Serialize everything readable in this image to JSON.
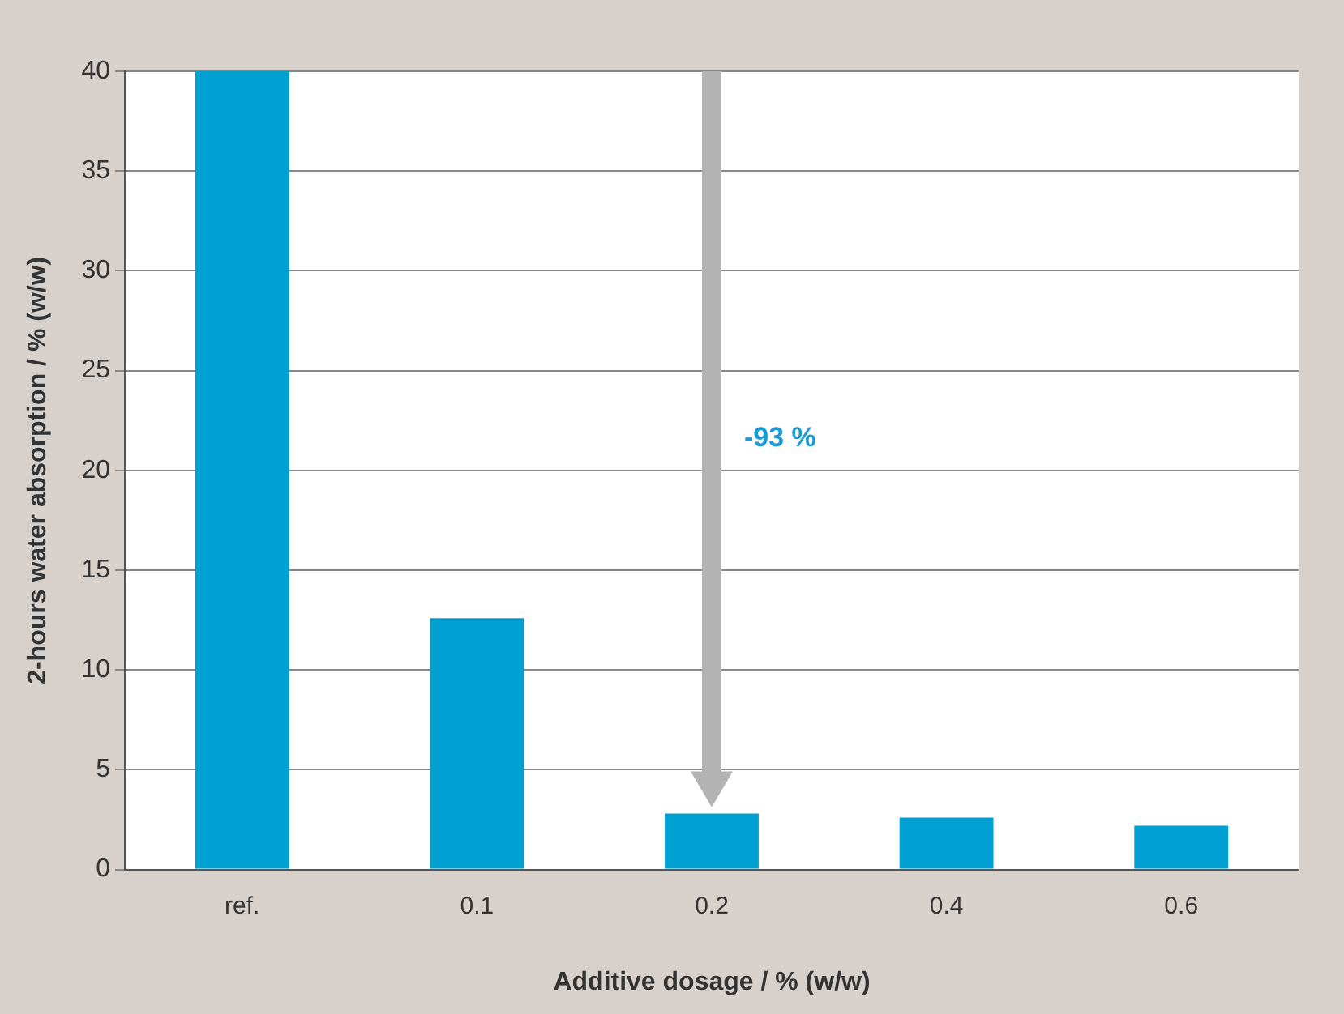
{
  "chart_data": {
    "type": "bar",
    "xlabel": "Additive dosage / % (w/w)",
    "ylabel": "2-hours water absorption / % (w/w)",
    "categories": [
      "ref.",
      "0.1",
      "0.2",
      "0.4",
      "0.6"
    ],
    "series": [
      {
        "color": "#00a0d2",
        "values": [
          40,
          12.6,
          2.8,
          2.6,
          2.2
        ]
      }
    ],
    "ylim": [
      0,
      40
    ],
    "yticks": [
      0,
      5,
      10,
      15,
      20,
      25,
      30,
      35,
      40
    ],
    "grid": "y",
    "legend": false,
    "annotations": [
      "-93 %"
    ]
  }
}
